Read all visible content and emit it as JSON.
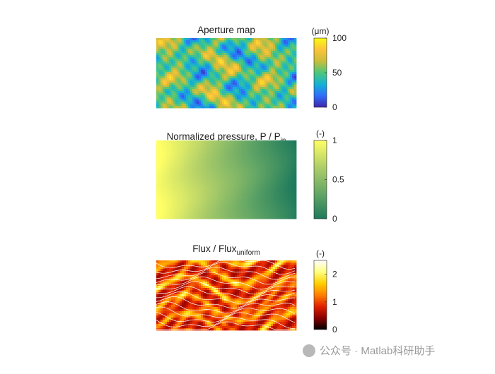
{
  "chart_data": [
    {
      "type": "heatmap",
      "title": "Aperture map",
      "colorbar_label": "(μm)",
      "clim": [
        0,
        100
      ],
      "cticks": [
        0,
        50,
        100
      ],
      "colormap": [
        "#3e26a8",
        "#2f6dfb",
        "#13b2d4",
        "#4cc77b",
        "#c9bd3b",
        "#fcc33a",
        "#f9fb15"
      ]
    },
    {
      "type": "heatmap",
      "title": "Normalized pressure, P / P",
      "title_sub": "in",
      "colorbar_label": "(-)",
      "clim": [
        0,
        1
      ],
      "cticks": [
        0,
        0.5,
        1
      ],
      "colormap": [
        "#1d7a5c",
        "#66a866",
        "#b0cf68",
        "#ffff66"
      ]
    },
    {
      "type": "heatmap",
      "title": "Flux / Flux",
      "title_sub": "uniform",
      "colorbar_label": "(-)",
      "clim": [
        0,
        2.5
      ],
      "cticks": [
        0,
        1,
        2
      ],
      "colormap": [
        "#000000",
        "#8a0000",
        "#e02000",
        "#ff8000",
        "#ffd000",
        "#ffff80",
        "#ffffff"
      ]
    }
  ],
  "watermark": "公众号 · Matlab科研助手"
}
